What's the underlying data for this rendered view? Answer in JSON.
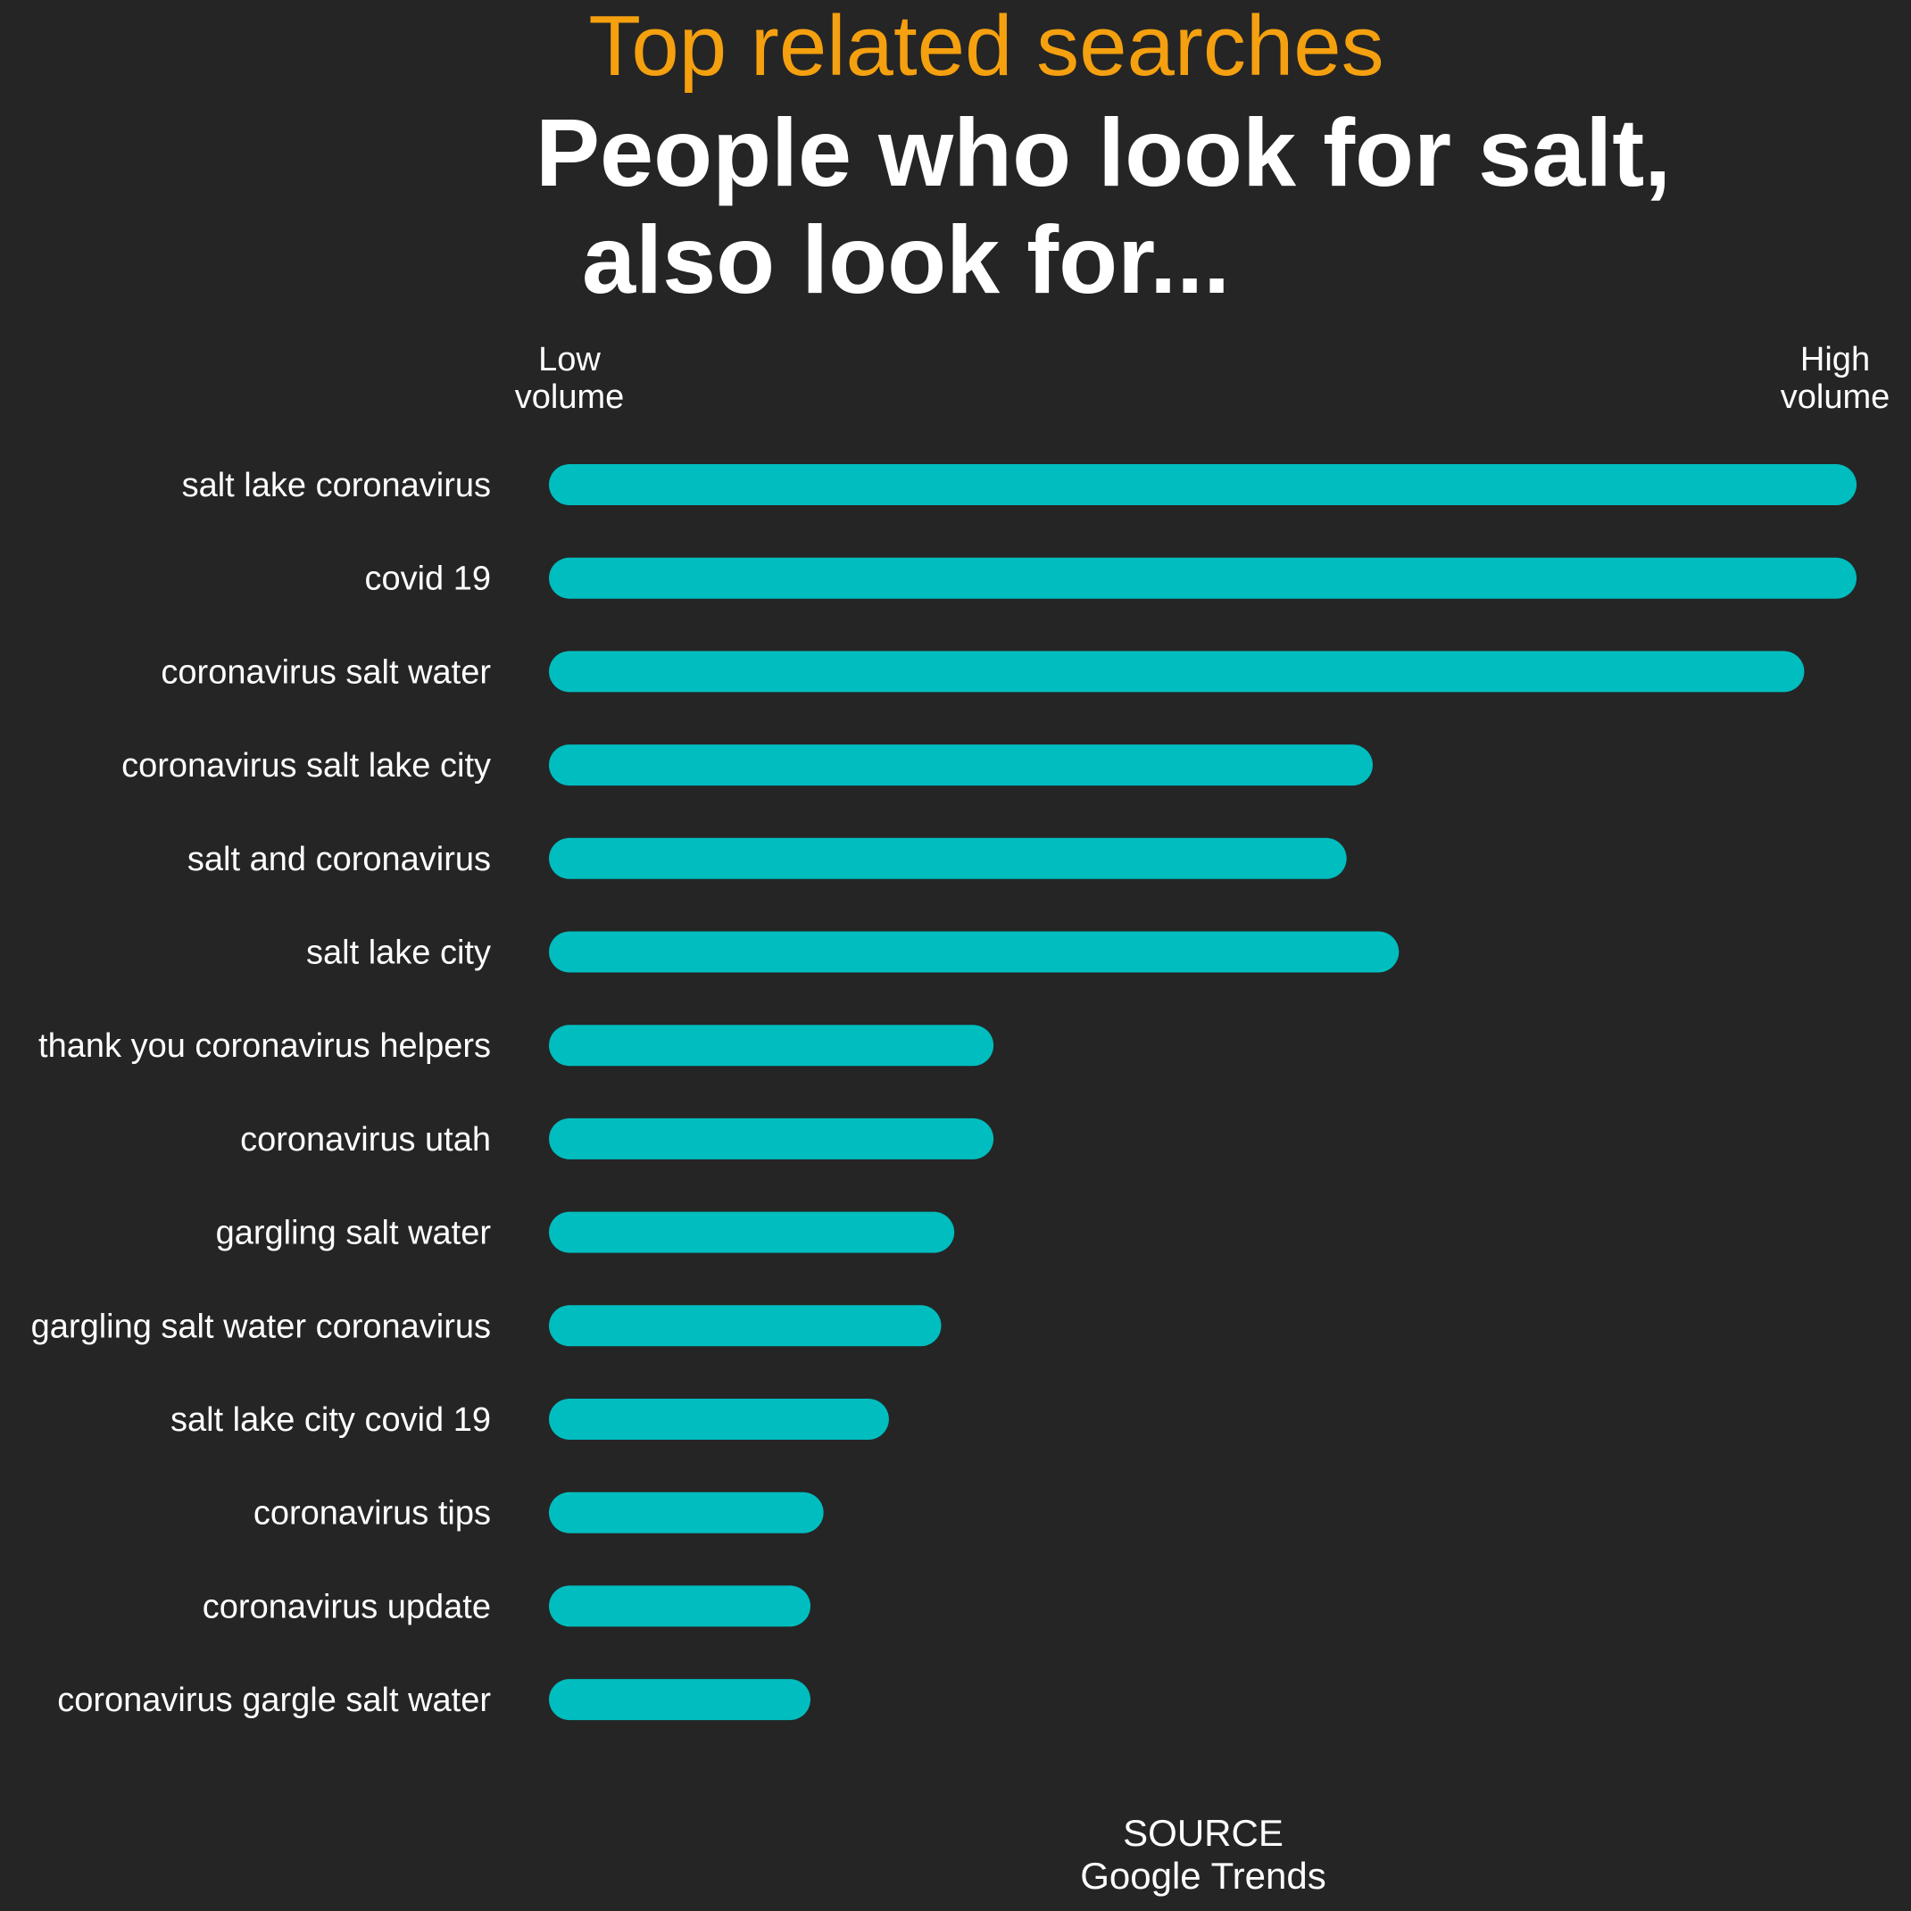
{
  "chart_data": {
    "type": "bar",
    "orientation": "horizontal",
    "title": "Top related searches",
    "subtitle_lines": [
      "People who look for salt,",
      "also look for..."
    ],
    "axis_low_label": [
      "Low",
      "volume"
    ],
    "axis_high_label": [
      "High",
      "volume"
    ],
    "categories": [
      "salt lake coronavirus",
      "covid 19",
      "coronavirus salt water",
      "coronavirus salt lake city",
      "salt and coronavirus",
      "salt lake city",
      "thank you coronavirus helpers",
      "coronavirus utah",
      "gargling salt water",
      "gargling salt water coronavirus",
      "salt lake city covid 19",
      "coronavirus tips",
      "coronavirus update",
      "coronavirus gargle salt water"
    ],
    "values": [
      100,
      100,
      96,
      63,
      61,
      65,
      34,
      34,
      31,
      30,
      26,
      21,
      20,
      20
    ],
    "xlim": [
      0,
      100
    ],
    "source_lines": [
      "SOURCE",
      "Google Trends"
    ],
    "grid": false,
    "legend": "none",
    "colors": {
      "background": "#252525",
      "title": "#f5a00f",
      "text": "#ffffff",
      "bar": "#00bdbf"
    }
  }
}
